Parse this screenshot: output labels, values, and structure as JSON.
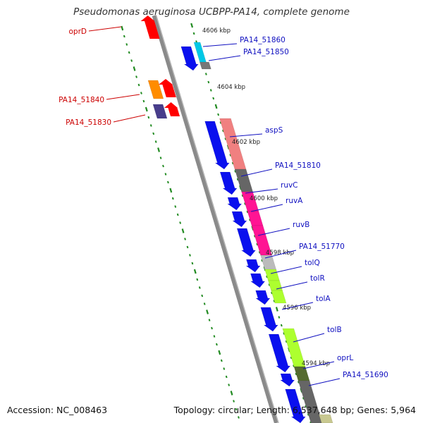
{
  "title": "Pseudomonas aeruginosa UCBPP-PA14, complete genome",
  "footer": {
    "accession": "Accession: NC_008463",
    "summary": "Topology: circular; Length: 6,537,648 bp; Genes: 5,964"
  },
  "colors": {
    "backbone": "#8a8a8a",
    "forward_gene": "#0a10ee",
    "reverse_gene": "#ee0a0a",
    "tick": "#228b22",
    "forward_label": "#1010c0",
    "reverse_label": "#cc0000"
  },
  "position_markers": [
    {
      "label": "4606 kbp"
    },
    {
      "label": "4604 kbp"
    },
    {
      "label": "4602 kbp"
    },
    {
      "label": "4600 kbp"
    },
    {
      "label": "4598 kbp"
    },
    {
      "label": "4596 kbp"
    },
    {
      "label": "4594 kbp"
    }
  ],
  "forward_genes": [
    {
      "label": "PA14_51860",
      "color": "#00c8e6"
    },
    {
      "label": "PA14_51850",
      "color": "#777777"
    },
    {
      "label": "aspS",
      "color": "#f08080"
    },
    {
      "label": "PA14_51810",
      "color": "#666666"
    },
    {
      "label": "ruvC",
      "color": "#ff1493"
    },
    {
      "label": "ruvA",
      "color": "#ff1493"
    },
    {
      "label": "ruvB",
      "color": "#ff1493"
    },
    {
      "label": "PA14_51770",
      "color": "#bbbbbb"
    },
    {
      "label": "tolQ",
      "color": "#adff2f"
    },
    {
      "label": "tolR",
      "color": "#adff2f"
    },
    {
      "label": "tolA",
      "color": "#adff2f"
    },
    {
      "label": "tolB",
      "color": "#adff2f"
    },
    {
      "label": "oprL",
      "color": "#556b2f"
    },
    {
      "label": "PA14_51690",
      "color": "#666666"
    }
  ],
  "reverse_genes": [
    {
      "label": "oprD",
      "color": "#ff0000"
    },
    {
      "label": "PA14_51840",
      "color": "#ff8c00"
    },
    {
      "label": "PA14_51830",
      "color": "#483d8b"
    }
  ]
}
